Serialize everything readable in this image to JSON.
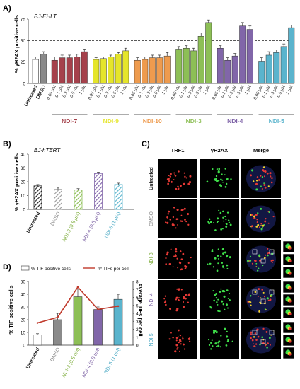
{
  "panels": {
    "A": {
      "letter": "A)",
      "subtitle": "BJ-EHLT",
      "chart_data": {
        "type": "bar",
        "ylabel": "% γH2AX positive cells",
        "ylim": [
          0,
          75
        ],
        "yticks": [
          "0",
          "25",
          "50",
          "75"
        ],
        "reference_line": 50,
        "first_labels": [
          "Untreated",
          "DMSO"
        ],
        "first_values": [
          28,
          34
        ],
        "first_errors": [
          3,
          3
        ],
        "first_colors": [
          "#ffffff",
          "#8a8a8a"
        ],
        "dose_labels": [
          "0.05 μM",
          "0.1 μM",
          "0.3 μM",
          "0.5 μM",
          "1 μM"
        ],
        "groups": [
          {
            "name": "NDI-7",
            "color": "#a5414b",
            "values": [
              27,
              30,
              30,
              31,
              37
            ],
            "errors": [
              4,
              3,
              3,
              3,
              3
            ]
          },
          {
            "name": "NDI-9",
            "color": "#e5e52b",
            "values": [
              28,
              29,
              31,
              34,
              38
            ],
            "errors": [
              2,
              2,
              2,
              2,
              3
            ]
          },
          {
            "name": "NDI-10",
            "color": "#ee9b4e",
            "values": [
              27,
              28,
              30,
              30,
              32
            ],
            "errors": [
              3,
              3,
              3,
              3,
              4
            ]
          },
          {
            "name": "NDI-3",
            "color": "#8dbf56",
            "values": [
              40,
              41,
              38,
              55,
              71
            ],
            "errors": [
              3,
              3,
              3,
              4,
              3
            ]
          },
          {
            "name": "NDI-4",
            "color": "#8166a9",
            "values": [
              41,
              27,
              32,
              67,
              63
            ],
            "errors": [
              3,
              3,
              3,
              4,
              4
            ]
          },
          {
            "name": "NDI-5",
            "color": "#5ab4cd",
            "values": [
              26,
              33,
              36,
              43,
              65
            ],
            "errors": [
              4,
              4,
              3,
              3,
              3
            ]
          }
        ]
      }
    },
    "B": {
      "letter": "B)",
      "subtitle": "BJ-hTERT",
      "chart_data": {
        "type": "bar",
        "ylabel": "% γH2AX positive cells",
        "ylim": [
          0,
          40
        ],
        "yticks": [
          "0",
          "10",
          "20",
          "30",
          "40"
        ],
        "categories": [
          "Untreated",
          "DMSO",
          "NDI-3 (0.5 μM)",
          "NDI-4 (0.5 μM)",
          "NDI-5 (1 μM)"
        ],
        "values": [
          17,
          14.5,
          14,
          26,
          18
        ],
        "errors": [
          1,
          1,
          1,
          1,
          1
        ],
        "colors": [
          "#222222",
          "#9a9a9a",
          "#8dbf56",
          "#8166a9",
          "#5ab4cd"
        ],
        "label_colors": [
          "#222222",
          "#888888",
          "#7fae3e",
          "#7a5fa2",
          "#4aa9c4"
        ]
      }
    },
    "C": {
      "letter": "C)",
      "columns": [
        "TRF1",
        "γH2AX",
        "Merge"
      ],
      "rows": [
        {
          "label": "Untreated",
          "color": "#222222"
        },
        {
          "label": "DMSO",
          "color": "#888888"
        },
        {
          "label": "NDI-3",
          "color": "#7fae3e"
        },
        {
          "label": "NDI-4",
          "color": "#7a5fa2"
        },
        {
          "label": "NDI-5",
          "color": "#4aa9c4"
        }
      ]
    },
    "D": {
      "letter": "D)",
      "legend_bar": "% TIF positive cells",
      "legend_line": "n° TIFs per cell",
      "chart_data": {
        "type": "bar",
        "ylabel": "% TIF positive cells",
        "y2label": "Average TIFs per cell",
        "ylim": [
          0,
          50
        ],
        "yticks": [
          "0",
          "10",
          "20",
          "30",
          "40",
          "50"
        ],
        "y2lim": [
          0,
          8
        ],
        "y2ticks": [
          "0",
          "1",
          "2",
          "3",
          "4",
          "5",
          "6",
          "7",
          "8"
        ],
        "categories": [
          "Untreated",
          "DMSO",
          "NDI-3 (0.5 μM)",
          "NDI-4 (0.5 μM)",
          "NDI-5 (1 μM)"
        ],
        "values": [
          8,
          20,
          38,
          28,
          36
        ],
        "errors": [
          1,
          5,
          6,
          2,
          4
        ],
        "line_values": [
          2.8,
          3.5,
          7.3,
          4.5,
          4.9
        ],
        "colors": [
          "#ffffff",
          "#8a8a8a",
          "#8dbf56",
          "#8166a9",
          "#5ab4cd"
        ],
        "label_colors": [
          "#222222",
          "#888888",
          "#7fae3e",
          "#7a5fa2",
          "#4aa9c4"
        ],
        "line_color": "#c0392b"
      }
    }
  }
}
